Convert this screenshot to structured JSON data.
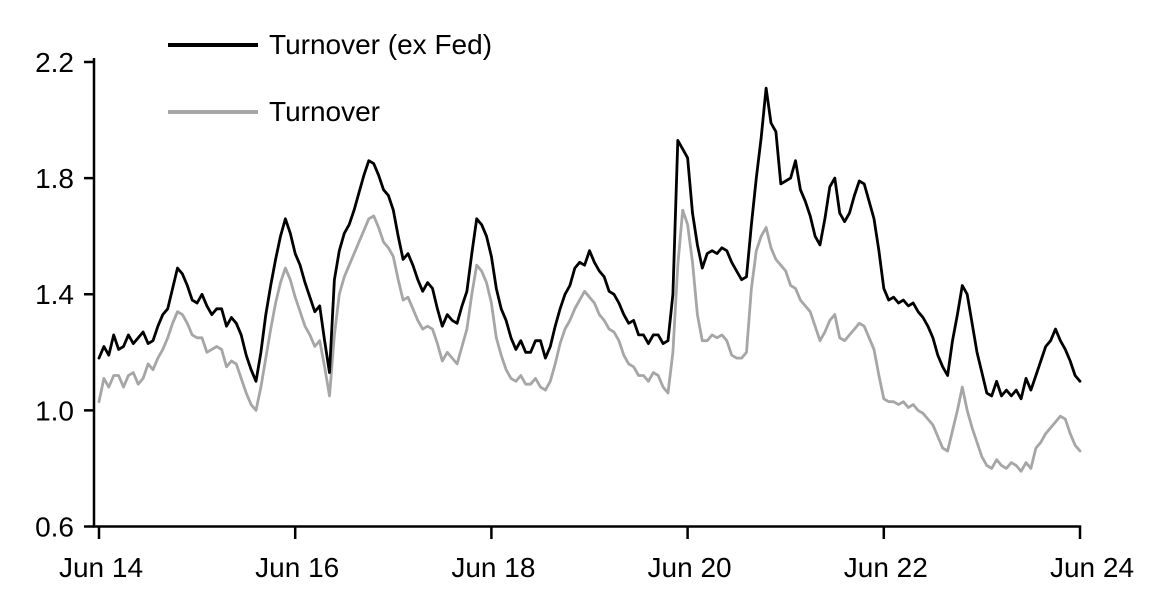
{
  "chart_data": {
    "type": "line",
    "title": "",
    "xlabel": "",
    "ylabel": "",
    "grid": false,
    "legend_position": "top-left-inside",
    "axis_color": "#000000",
    "background_color": "#ffffff",
    "y_axis": {
      "min": 0.6,
      "max": 2.2,
      "ticks": [
        0.6,
        1.0,
        1.4,
        1.8,
        2.2
      ],
      "tick_labels": [
        "0.6",
        "1.0",
        "1.4",
        "1.8",
        "2.2"
      ]
    },
    "x_axis": {
      "min": 0,
      "max": 10,
      "unit": "years since Jun 2014",
      "ticks": [
        0,
        2,
        4,
        6,
        8,
        10
      ],
      "tick_labels": [
        "Jun 14",
        "Jun 16",
        "Jun 18",
        "Jun 20",
        "Jun 22",
        "Jun 24"
      ]
    },
    "x_start": 0,
    "x_step": 0.05,
    "series": [
      {
        "name": "Turnover (ex Fed)",
        "color": "#000000",
        "values": [
          1.18,
          1.22,
          1.19,
          1.26,
          1.21,
          1.22,
          1.26,
          1.23,
          1.25,
          1.27,
          1.23,
          1.24,
          1.29,
          1.33,
          1.35,
          1.42,
          1.49,
          1.47,
          1.43,
          1.38,
          1.37,
          1.4,
          1.36,
          1.33,
          1.35,
          1.35,
          1.29,
          1.32,
          1.3,
          1.26,
          1.19,
          1.14,
          1.1,
          1.2,
          1.33,
          1.43,
          1.52,
          1.6,
          1.66,
          1.61,
          1.54,
          1.5,
          1.44,
          1.39,
          1.34,
          1.36,
          1.24,
          1.13,
          1.45,
          1.55,
          1.61,
          1.64,
          1.69,
          1.75,
          1.81,
          1.86,
          1.85,
          1.81,
          1.76,
          1.74,
          1.69,
          1.6,
          1.52,
          1.54,
          1.5,
          1.45,
          1.41,
          1.44,
          1.42,
          1.35,
          1.29,
          1.33,
          1.31,
          1.3,
          1.36,
          1.41,
          1.54,
          1.66,
          1.64,
          1.6,
          1.53,
          1.42,
          1.35,
          1.31,
          1.25,
          1.21,
          1.24,
          1.2,
          1.2,
          1.24,
          1.24,
          1.18,
          1.22,
          1.29,
          1.35,
          1.4,
          1.43,
          1.49,
          1.51,
          1.5,
          1.55,
          1.51,
          1.48,
          1.46,
          1.41,
          1.4,
          1.37,
          1.33,
          1.3,
          1.31,
          1.26,
          1.26,
          1.23,
          1.26,
          1.26,
          1.23,
          1.24,
          1.4,
          1.93,
          1.9,
          1.87,
          1.68,
          1.57,
          1.49,
          1.54,
          1.55,
          1.54,
          1.56,
          1.55,
          1.51,
          1.48,
          1.45,
          1.46,
          1.64,
          1.8,
          1.94,
          2.11,
          1.99,
          1.96,
          1.78,
          1.79,
          1.8,
          1.86,
          1.76,
          1.72,
          1.67,
          1.6,
          1.57,
          1.66,
          1.77,
          1.8,
          1.68,
          1.65,
          1.68,
          1.74,
          1.79,
          1.78,
          1.72,
          1.66,
          1.55,
          1.42,
          1.38,
          1.39,
          1.37,
          1.38,
          1.36,
          1.37,
          1.34,
          1.32,
          1.29,
          1.25,
          1.19,
          1.15,
          1.12,
          1.24,
          1.33,
          1.43,
          1.4,
          1.3,
          1.2,
          1.13,
          1.06,
          1.05,
          1.1,
          1.05,
          1.07,
          1.05,
          1.07,
          1.04,
          1.11,
          1.07,
          1.12,
          1.17,
          1.22,
          1.24,
          1.28,
          1.24,
          1.21,
          1.17,
          1.12,
          1.1
        ]
      },
      {
        "name": "Turnover",
        "color": "#a6a6a6",
        "values": [
          1.03,
          1.11,
          1.08,
          1.12,
          1.12,
          1.08,
          1.12,
          1.13,
          1.09,
          1.11,
          1.16,
          1.14,
          1.18,
          1.21,
          1.25,
          1.3,
          1.34,
          1.33,
          1.3,
          1.26,
          1.25,
          1.25,
          1.2,
          1.21,
          1.22,
          1.21,
          1.15,
          1.17,
          1.16,
          1.11,
          1.06,
          1.02,
          1.0,
          1.08,
          1.18,
          1.28,
          1.37,
          1.44,
          1.49,
          1.45,
          1.39,
          1.34,
          1.29,
          1.26,
          1.22,
          1.24,
          1.15,
          1.05,
          1.26,
          1.4,
          1.46,
          1.5,
          1.54,
          1.58,
          1.62,
          1.66,
          1.67,
          1.63,
          1.58,
          1.56,
          1.53,
          1.45,
          1.38,
          1.39,
          1.35,
          1.31,
          1.28,
          1.29,
          1.28,
          1.23,
          1.17,
          1.2,
          1.18,
          1.16,
          1.22,
          1.28,
          1.4,
          1.5,
          1.48,
          1.44,
          1.37,
          1.25,
          1.19,
          1.14,
          1.11,
          1.1,
          1.12,
          1.09,
          1.09,
          1.11,
          1.08,
          1.07,
          1.1,
          1.16,
          1.23,
          1.28,
          1.31,
          1.35,
          1.38,
          1.41,
          1.39,
          1.37,
          1.33,
          1.31,
          1.28,
          1.27,
          1.24,
          1.19,
          1.16,
          1.15,
          1.12,
          1.12,
          1.1,
          1.13,
          1.12,
          1.08,
          1.06,
          1.2,
          1.5,
          1.69,
          1.64,
          1.51,
          1.33,
          1.24,
          1.24,
          1.26,
          1.25,
          1.26,
          1.24,
          1.19,
          1.18,
          1.18,
          1.2,
          1.42,
          1.55,
          1.6,
          1.63,
          1.56,
          1.52,
          1.5,
          1.48,
          1.43,
          1.42,
          1.38,
          1.36,
          1.34,
          1.29,
          1.24,
          1.27,
          1.31,
          1.33,
          1.25,
          1.24,
          1.26,
          1.28,
          1.3,
          1.29,
          1.25,
          1.21,
          1.12,
          1.04,
          1.03,
          1.03,
          1.02,
          1.03,
          1.01,
          1.02,
          1.0,
          0.99,
          0.97,
          0.95,
          0.91,
          0.87,
          0.86,
          0.93,
          1.0,
          1.08,
          1.0,
          0.94,
          0.89,
          0.84,
          0.81,
          0.8,
          0.83,
          0.81,
          0.8,
          0.82,
          0.81,
          0.79,
          0.82,
          0.8,
          0.87,
          0.89,
          0.92,
          0.94,
          0.96,
          0.98,
          0.97,
          0.92,
          0.88,
          0.86
        ]
      }
    ]
  }
}
